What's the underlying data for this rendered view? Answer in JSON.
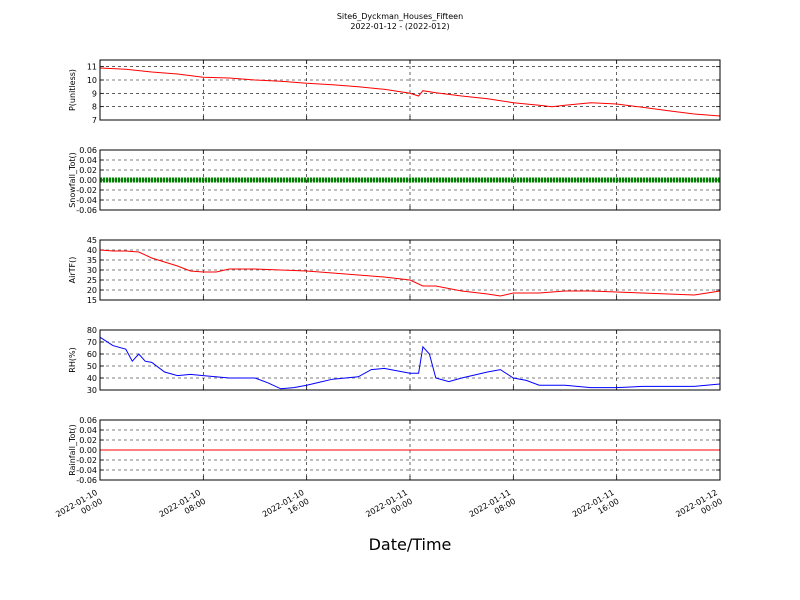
{
  "figure": {
    "title": "Site6_Dyckman_Houses_Fifteen",
    "subtitle": "2022-01-12 - (2022-012)",
    "xlabel": "Date/Time"
  },
  "chart_data": [
    {
      "type": "line",
      "ylabel": "P(unitless)",
      "ylim": [
        7,
        11.5
      ],
      "yticks": [
        "7",
        "8",
        "9",
        "10",
        "11"
      ],
      "yticks_values": [
        7,
        8,
        9,
        10,
        11
      ],
      "color": "#ff0000",
      "grid": true,
      "series": [
        {
          "x": [
            "2022-01-10 00:00",
            "2022-01-10 02:00",
            "2022-01-10 04:00",
            "2022-01-10 06:00",
            "2022-01-10 08:00",
            "2022-01-10 10:00",
            "2022-01-10 12:00",
            "2022-01-10 14:00",
            "2022-01-10 16:00",
            "2022-01-10 18:00",
            "2022-01-10 20:00",
            "2022-01-10 22:00",
            "2022-01-11 00:00",
            "2022-01-11 00:40",
            "2022-01-11 01:00",
            "2022-01-11 02:00",
            "2022-01-11 04:00",
            "2022-01-11 06:00",
            "2022-01-11 08:00",
            "2022-01-11 10:00",
            "2022-01-11 11:00",
            "2022-01-11 12:00",
            "2022-01-11 14:00",
            "2022-01-11 16:00",
            "2022-01-11 18:00",
            "2022-01-11 20:00",
            "2022-01-11 22:00",
            "2022-01-12 00:00"
          ],
          "y": [
            10.9,
            10.8,
            10.6,
            10.45,
            10.2,
            10.15,
            10.0,
            9.9,
            9.75,
            9.65,
            9.5,
            9.3,
            9.0,
            8.8,
            9.2,
            9.05,
            8.8,
            8.6,
            8.3,
            8.1,
            8.0,
            8.1,
            8.3,
            8.2,
            7.95,
            7.7,
            7.45,
            7.3
          ]
        }
      ]
    },
    {
      "type": "line",
      "ylabel": "Snowfall_Tot()",
      "ylim": [
        -0.06,
        0.06
      ],
      "yticks": [
        "-0.06",
        "-0.04",
        "-0.02",
        "0.00",
        "0.02",
        "0.04",
        "0.06"
      ],
      "yticks_values": [
        -0.06,
        -0.04,
        -0.02,
        0.0,
        0.02,
        0.04,
        0.06
      ],
      "color": "#008000",
      "grid": true,
      "marker": "dot",
      "series": [
        {
          "x": [
            "2022-01-10 00:00",
            "2022-01-12 00:00"
          ],
          "y": [
            0,
            0
          ]
        }
      ]
    },
    {
      "type": "line",
      "ylabel": "AirTF()",
      "ylim": [
        15,
        45
      ],
      "yticks": [
        "15",
        "20",
        "25",
        "30",
        "35",
        "40",
        "45"
      ],
      "yticks_values": [
        15,
        20,
        25,
        30,
        35,
        40,
        45
      ],
      "color": "#ff0000",
      "grid": true,
      "series": [
        {
          "x": [
            "2022-01-10 00:00",
            "2022-01-10 01:00",
            "2022-01-10 02:00",
            "2022-01-10 03:00",
            "2022-01-10 04:00",
            "2022-01-10 06:00",
            "2022-01-10 07:00",
            "2022-01-10 08:00",
            "2022-01-10 09:00",
            "2022-01-10 10:00",
            "2022-01-10 12:00",
            "2022-01-10 14:00",
            "2022-01-10 16:00",
            "2022-01-10 18:00",
            "2022-01-10 20:00",
            "2022-01-10 22:00",
            "2022-01-11 00:00",
            "2022-01-11 01:00",
            "2022-01-11 02:00",
            "2022-01-11 04:00",
            "2022-01-11 06:00",
            "2022-01-11 07:00",
            "2022-01-11 08:00",
            "2022-01-11 10:00",
            "2022-01-11 12:00",
            "2022-01-11 14:00",
            "2022-01-11 16:00",
            "2022-01-11 18:00",
            "2022-01-11 20:00",
            "2022-01-11 22:00",
            "2022-01-12 00:00"
          ],
          "y": [
            40,
            39.5,
            39.5,
            39,
            36,
            32,
            29.5,
            29,
            29,
            30.5,
            30.5,
            30,
            29.5,
            28.5,
            27.5,
            26.5,
            25,
            22,
            22,
            19.5,
            18,
            17,
            18.5,
            18.5,
            19.5,
            19.5,
            19,
            18.5,
            18,
            17.5,
            19.5
          ]
        }
      ]
    },
    {
      "type": "line",
      "ylabel": "RH(%)",
      "ylim": [
        30,
        80
      ],
      "yticks": [
        "30",
        "40",
        "50",
        "60",
        "70",
        "80"
      ],
      "yticks_values": [
        30,
        40,
        50,
        60,
        70,
        80
      ],
      "color": "#0000ff",
      "grid": true,
      "series": [
        {
          "x": [
            "2022-01-10 00:00",
            "2022-01-10 01:00",
            "2022-01-10 02:00",
            "2022-01-10 02:30",
            "2022-01-10 03:00",
            "2022-01-10 03:30",
            "2022-01-10 04:00",
            "2022-01-10 05:00",
            "2022-01-10 06:00",
            "2022-01-10 07:00",
            "2022-01-10 08:00",
            "2022-01-10 10:00",
            "2022-01-10 12:00",
            "2022-01-10 13:00",
            "2022-01-10 14:00",
            "2022-01-10 15:00",
            "2022-01-10 16:00",
            "2022-01-10 18:00",
            "2022-01-10 20:00",
            "2022-01-10 21:00",
            "2022-01-10 22:00",
            "2022-01-11 00:00",
            "2022-01-11 00:40",
            "2022-01-11 01:00",
            "2022-01-11 01:30",
            "2022-01-11 02:00",
            "2022-01-11 03:00",
            "2022-01-11 04:00",
            "2022-01-11 06:00",
            "2022-01-11 07:00",
            "2022-01-11 08:00",
            "2022-01-11 09:00",
            "2022-01-11 10:00",
            "2022-01-11 12:00",
            "2022-01-11 14:00",
            "2022-01-11 16:00",
            "2022-01-11 18:00",
            "2022-01-11 20:00",
            "2022-01-11 22:00",
            "2022-01-12 00:00"
          ],
          "y": [
            74,
            67,
            64,
            54,
            60,
            54,
            53,
            45,
            42,
            43,
            42,
            40,
            40,
            36,
            31,
            32,
            34,
            39,
            41,
            47,
            48,
            44,
            44,
            66,
            60,
            40,
            37,
            40,
            45,
            47,
            40,
            38,
            34,
            34,
            32,
            32,
            33,
            33,
            33,
            35
          ]
        }
      ]
    },
    {
      "type": "line",
      "ylabel": "Rainfall_Tot()",
      "ylim": [
        -0.06,
        0.06
      ],
      "yticks": [
        "-0.06",
        "-0.04",
        "-0.02",
        "0.00",
        "0.02",
        "0.04",
        "0.06"
      ],
      "yticks_values": [
        -0.06,
        -0.04,
        -0.02,
        0.0,
        0.02,
        0.04,
        0.06
      ],
      "color": "#ff0000",
      "grid": true,
      "series": [
        {
          "x": [
            "2022-01-10 00:00",
            "2022-01-12 00:00"
          ],
          "y": [
            0,
            0
          ]
        }
      ]
    }
  ],
  "x_axis": {
    "range": [
      "2022-01-10 00:00",
      "2022-01-12 00:00"
    ],
    "ticks": [
      "2022-01-10 00:00",
      "2022-01-10 08:00",
      "2022-01-10 16:00",
      "2022-01-11 00:00",
      "2022-01-11 08:00",
      "2022-01-11 16:00",
      "2022-01-12 00:00"
    ],
    "tick_labels": [
      [
        "2022-01-10",
        "00:00"
      ],
      [
        "2022-01-10",
        "08:00"
      ],
      [
        "2022-01-10",
        "16:00"
      ],
      [
        "2022-01-11",
        "00:00"
      ],
      [
        "2022-01-11",
        "08:00"
      ],
      [
        "2022-01-11",
        "16:00"
      ],
      [
        "2022-01-12",
        "00:00"
      ]
    ]
  }
}
